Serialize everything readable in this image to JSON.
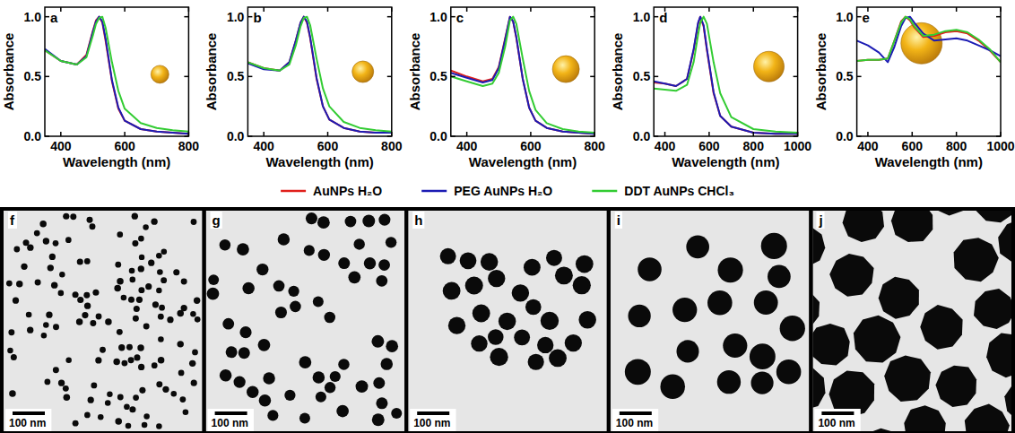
{
  "chart_data": [
    {
      "type": "line",
      "title": "a",
      "x_label": "Wavelength (nm)",
      "y_label": "Absorbance",
      "xlim": [
        350,
        800
      ],
      "xticks": [
        400,
        600,
        800
      ],
      "ylim": [
        0,
        1.08
      ],
      "yticks": [
        {
          "value": 0,
          "label": "0.0"
        },
        {
          "value": 0.5,
          "label": "0.5"
        },
        {
          "value": 1,
          "label": "1.0"
        }
      ],
      "legend": "bottom",
      "x": [
        350,
        400,
        450,
        480,
        500,
        510,
        520,
        530,
        540,
        560,
        580,
        600,
        650,
        700,
        750,
        800
      ],
      "series": [
        {
          "name": "AuNPs  H₂O",
          "color": "#e0201c",
          "values": [
            0.72,
            0.63,
            0.6,
            0.68,
            0.88,
            0.97,
            1.0,
            0.95,
            0.8,
            0.46,
            0.23,
            0.13,
            0.06,
            0.04,
            0.03,
            0.02
          ]
        },
        {
          "name": "PEG AuNPs H₂O",
          "color": "#1c1cb4",
          "values": [
            0.73,
            0.63,
            0.6,
            0.67,
            0.87,
            0.96,
            1.0,
            0.96,
            0.82,
            0.47,
            0.24,
            0.13,
            0.06,
            0.04,
            0.03,
            0.02
          ]
        },
        {
          "name": "DDT AuNPs CHCl₃",
          "color": "#33cc33",
          "values": [
            0.72,
            0.63,
            0.6,
            0.66,
            0.84,
            0.94,
            0.99,
            1.0,
            0.91,
            0.62,
            0.38,
            0.23,
            0.11,
            0.07,
            0.05,
            0.04
          ]
        }
      ]
    },
    {
      "type": "line",
      "title": "b",
      "x_label": "Wavelength (nm)",
      "y_label": "Absorbance",
      "xlim": [
        350,
        800
      ],
      "xticks": [
        400,
        600,
        800
      ],
      "ylim": [
        0,
        1.08
      ],
      "yticks": [
        {
          "value": 0,
          "label": "0.0"
        },
        {
          "value": 0.5,
          "label": "0.5"
        },
        {
          "value": 1,
          "label": "1.0"
        }
      ],
      "x": [
        350,
        400,
        450,
        480,
        500,
        515,
        525,
        535,
        545,
        565,
        585,
        605,
        650,
        700,
        750,
        800
      ],
      "series": [
        {
          "color": "#e0201c",
          "values": [
            0.62,
            0.57,
            0.55,
            0.62,
            0.8,
            0.95,
            1.0,
            0.95,
            0.82,
            0.48,
            0.25,
            0.14,
            0.07,
            0.04,
            0.03,
            0.03
          ]
        },
        {
          "color": "#1c1cb4",
          "values": [
            0.61,
            0.56,
            0.55,
            0.62,
            0.8,
            0.95,
            1.0,
            0.96,
            0.83,
            0.49,
            0.25,
            0.14,
            0.07,
            0.04,
            0.03,
            0.03
          ]
        },
        {
          "color": "#33cc33",
          "values": [
            0.62,
            0.57,
            0.55,
            0.6,
            0.76,
            0.92,
            0.99,
            1.0,
            0.93,
            0.65,
            0.4,
            0.25,
            0.12,
            0.07,
            0.05,
            0.04
          ]
        }
      ]
    },
    {
      "type": "line",
      "title": "c",
      "x_label": "Wavelength (nm)",
      "y_label": "Absorbance",
      "xlim": [
        350,
        800
      ],
      "xticks": [
        400,
        600,
        800
      ],
      "ylim": [
        0,
        1.08
      ],
      "yticks": [
        {
          "value": 0,
          "label": "0.0"
        },
        {
          "value": 0.5,
          "label": "0.5"
        },
        {
          "value": 1,
          "label": "1.0"
        }
      ],
      "x": [
        350,
        400,
        450,
        480,
        500,
        520,
        535,
        545,
        555,
        575,
        595,
        615,
        650,
        700,
        750,
        800
      ],
      "series": [
        {
          "color": "#e0201c",
          "values": [
            0.55,
            0.5,
            0.46,
            0.48,
            0.58,
            0.82,
            1.0,
            0.96,
            0.82,
            0.48,
            0.24,
            0.13,
            0.07,
            0.04,
            0.03,
            0.02
          ]
        },
        {
          "color": "#1c1cb4",
          "values": [
            0.53,
            0.49,
            0.45,
            0.47,
            0.57,
            0.81,
            1.0,
            0.96,
            0.83,
            0.48,
            0.24,
            0.13,
            0.07,
            0.04,
            0.03,
            0.02
          ]
        },
        {
          "color": "#33cc33",
          "values": [
            0.5,
            0.46,
            0.42,
            0.44,
            0.53,
            0.75,
            0.97,
            1.0,
            0.94,
            0.65,
            0.38,
            0.22,
            0.11,
            0.06,
            0.04,
            0.03
          ]
        }
      ]
    },
    {
      "type": "line",
      "title": "d",
      "x_label": "Wavelength (nm)",
      "y_label": "Absorbance",
      "xlim": [
        350,
        1000
      ],
      "xticks": [
        400,
        600,
        800,
        1000
      ],
      "ylim": [
        0,
        1.08
      ],
      "yticks": [
        {
          "value": 0,
          "label": "0.0"
        },
        {
          "value": 0.5,
          "label": "0.5"
        },
        {
          "value": 1,
          "label": "1.0"
        }
      ],
      "x": [
        350,
        400,
        450,
        500,
        530,
        550,
        560,
        575,
        590,
        620,
        650,
        700,
        800,
        900,
        1000
      ],
      "series": [
        {
          "color": "#e0201c",
          "values": [
            0.45,
            0.44,
            0.42,
            0.48,
            0.72,
            0.94,
            1.0,
            0.92,
            0.72,
            0.36,
            0.17,
            0.08,
            0.03,
            0.02,
            0.02
          ]
        },
        {
          "color": "#1c1cb4",
          "values": [
            0.46,
            0.44,
            0.42,
            0.48,
            0.73,
            0.95,
            1.0,
            0.93,
            0.73,
            0.37,
            0.17,
            0.08,
            0.03,
            0.02,
            0.02
          ]
        },
        {
          "color": "#33cc33",
          "values": [
            0.4,
            0.39,
            0.38,
            0.43,
            0.62,
            0.85,
            0.95,
            1.0,
            0.94,
            0.62,
            0.36,
            0.16,
            0.06,
            0.04,
            0.03
          ]
        }
      ]
    },
    {
      "type": "line",
      "title": "e",
      "x_label": "Wavelength (nm)",
      "y_label": "Absorbance",
      "xlim": [
        350,
        1000
      ],
      "xticks": [
        400,
        600,
        800,
        1000
      ],
      "ylim": [
        0,
        1.08
      ],
      "yticks": [
        {
          "value": 0,
          "label": "0.0"
        },
        {
          "value": 0.5,
          "label": "0.5"
        },
        {
          "value": 1,
          "label": "1.0"
        }
      ],
      "x": [
        350,
        400,
        450,
        490,
        520,
        550,
        570,
        590,
        610,
        650,
        700,
        750,
        800,
        850,
        900,
        950,
        1000
      ],
      "series": [
        {
          "color": "#e0201c",
          "values": [
            0.63,
            0.64,
            0.64,
            0.65,
            0.8,
            0.96,
            1.0,
            0.97,
            0.91,
            0.83,
            0.84,
            0.87,
            0.88,
            0.86,
            0.8,
            0.72,
            0.62
          ]
        },
        {
          "color": "#1c1cb4",
          "values": [
            0.8,
            0.76,
            0.7,
            0.62,
            0.75,
            0.92,
            0.99,
            1.0,
            0.95,
            0.86,
            0.8,
            0.81,
            0.82,
            0.8,
            0.76,
            0.72,
            0.67
          ]
        },
        {
          "color": "#33cc33",
          "values": [
            0.63,
            0.64,
            0.64,
            0.65,
            0.8,
            0.95,
            1.0,
            0.98,
            0.92,
            0.84,
            0.85,
            0.88,
            0.89,
            0.87,
            0.81,
            0.73,
            0.62
          ]
        }
      ]
    }
  ],
  "images": [
    {
      "label": "f",
      "scale_bar": "100 nm"
    },
    {
      "label": "g",
      "scale_bar": "100 nm"
    },
    {
      "label": "h",
      "scale_bar": "100 nm"
    },
    {
      "label": "i",
      "scale_bar": "100 nm"
    },
    {
      "label": "j",
      "scale_bar": "100 nm"
    }
  ]
}
